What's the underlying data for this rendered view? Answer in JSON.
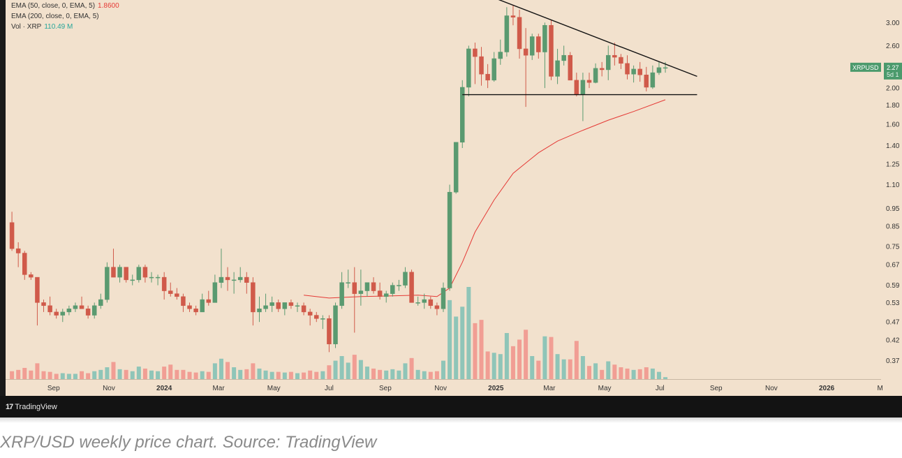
{
  "legend": {
    "ema50": {
      "label": "EMA (50, close, 0, EMA, 5)",
      "value": "1.8600",
      "color": "#e53935"
    },
    "ema200": {
      "label": "EMA (200, close, 0, EMA, 5)"
    },
    "vol": {
      "label": "Vol · XRP",
      "value": "110.49 M",
      "color": "#26a69a"
    }
  },
  "symbol_tag": {
    "name": "XRPUSD",
    "price": "2.27",
    "interval": "5d 1"
  },
  "brand": "TradingView",
  "caption": "XRP/USD weekly price chart. Source: TradingView",
  "colors": {
    "up": "#5a9a70",
    "down": "#d05a4a",
    "vol_up": "#8fc5b8",
    "vol_down": "#f19e94",
    "ema": "#e53935",
    "background": "#f2e1cd"
  },
  "chart_data": {
    "type": "candlestick",
    "interval": "weekly",
    "y_scale": "log",
    "ylim": [
      0.33,
      3.45
    ],
    "xlim": [
      "2023-07-10",
      "2026-03-02"
    ],
    "y_ticks": [
      "3.00",
      "2.60",
      "2.00",
      "1.80",
      "1.60",
      "1.40",
      "1.25",
      "1.10",
      "0.95",
      "0.85",
      "0.75",
      "0.67",
      "0.59",
      "0.53",
      "0.47",
      "0.42",
      "0.37"
    ],
    "x_ticks": [
      {
        "label": "Sep",
        "date": "2023-09-01",
        "bold": false
      },
      {
        "label": "Nov",
        "date": "2023-11-01",
        "bold": false
      },
      {
        "label": "2024",
        "date": "2024-01-01",
        "bold": true
      },
      {
        "label": "Mar",
        "date": "2024-03-01",
        "bold": false
      },
      {
        "label": "May",
        "date": "2024-05-01",
        "bold": false
      },
      {
        "label": "Jul",
        "date": "2024-07-01",
        "bold": false
      },
      {
        "label": "Sep",
        "date": "2024-09-01",
        "bold": false
      },
      {
        "label": "Nov",
        "date": "2024-11-01",
        "bold": false
      },
      {
        "label": "2025",
        "date": "2025-01-01",
        "bold": true
      },
      {
        "label": "Mar",
        "date": "2025-03-01",
        "bold": false
      },
      {
        "label": "May",
        "date": "2025-05-01",
        "bold": false
      },
      {
        "label": "Jul",
        "date": "2025-07-01",
        "bold": false
      },
      {
        "label": "Sep",
        "date": "2025-09-01",
        "bold": false
      },
      {
        "label": "Nov",
        "date": "2025-11-01",
        "bold": false
      },
      {
        "label": "2026",
        "date": "2026-01-01",
        "bold": true
      },
      {
        "label": "M",
        "date": "2026-03-01",
        "bold": false
      }
    ],
    "candles": [
      {
        "date": "2023-07-17",
        "o": 0.87,
        "h": 0.93,
        "l": 0.73,
        "c": 0.74,
        "v": 12
      },
      {
        "date": "2023-07-24",
        "o": 0.74,
        "h": 0.77,
        "l": 0.66,
        "c": 0.72,
        "v": 14
      },
      {
        "date": "2023-07-31",
        "o": 0.72,
        "h": 0.73,
        "l": 0.61,
        "c": 0.63,
        "v": 17
      },
      {
        "date": "2023-08-07",
        "o": 0.63,
        "h": 0.64,
        "l": 0.61,
        "c": 0.62,
        "v": 13
      },
      {
        "date": "2023-08-14",
        "o": 0.62,
        "h": 0.62,
        "l": 0.46,
        "c": 0.53,
        "v": 24
      },
      {
        "date": "2023-08-21",
        "o": 0.53,
        "h": 0.54,
        "l": 0.5,
        "c": 0.52,
        "v": 12
      },
      {
        "date": "2023-08-28",
        "o": 0.52,
        "h": 0.55,
        "l": 0.49,
        "c": 0.5,
        "v": 11
      },
      {
        "date": "2023-09-04",
        "o": 0.5,
        "h": 0.51,
        "l": 0.48,
        "c": 0.49,
        "v": 8
      },
      {
        "date": "2023-09-11",
        "o": 0.49,
        "h": 0.51,
        "l": 0.47,
        "c": 0.5,
        "v": 9
      },
      {
        "date": "2023-09-18",
        "o": 0.5,
        "h": 0.52,
        "l": 0.49,
        "c": 0.51,
        "v": 8
      },
      {
        "date": "2023-09-25",
        "o": 0.51,
        "h": 0.53,
        "l": 0.5,
        "c": 0.52,
        "v": 8
      },
      {
        "date": "2023-10-02",
        "o": 0.52,
        "h": 0.55,
        "l": 0.51,
        "c": 0.51,
        "v": 12
      },
      {
        "date": "2023-10-09",
        "o": 0.51,
        "h": 0.52,
        "l": 0.48,
        "c": 0.49,
        "v": 9
      },
      {
        "date": "2023-10-16",
        "o": 0.49,
        "h": 0.53,
        "l": 0.48,
        "c": 0.52,
        "v": 12
      },
      {
        "date": "2023-10-23",
        "o": 0.52,
        "h": 0.56,
        "l": 0.51,
        "c": 0.54,
        "v": 14
      },
      {
        "date": "2023-10-30",
        "o": 0.54,
        "h": 0.68,
        "l": 0.53,
        "c": 0.66,
        "v": 18
      },
      {
        "date": "2023-11-06",
        "o": 0.66,
        "h": 0.74,
        "l": 0.62,
        "c": 0.62,
        "v": 26
      },
      {
        "date": "2023-11-13",
        "o": 0.62,
        "h": 0.67,
        "l": 0.6,
        "c": 0.66,
        "v": 15
      },
      {
        "date": "2023-11-20",
        "o": 0.66,
        "h": 0.66,
        "l": 0.6,
        "c": 0.61,
        "v": 14
      },
      {
        "date": "2023-11-27",
        "o": 0.61,
        "h": 0.63,
        "l": 0.59,
        "c": 0.61,
        "v": 12
      },
      {
        "date": "2023-12-04",
        "o": 0.61,
        "h": 0.67,
        "l": 0.6,
        "c": 0.66,
        "v": 19
      },
      {
        "date": "2023-12-11",
        "o": 0.66,
        "h": 0.67,
        "l": 0.6,
        "c": 0.62,
        "v": 16
      },
      {
        "date": "2023-12-18",
        "o": 0.62,
        "h": 0.64,
        "l": 0.6,
        "c": 0.62,
        "v": 13
      },
      {
        "date": "2023-12-25",
        "o": 0.62,
        "h": 0.63,
        "l": 0.59,
        "c": 0.62,
        "v": 12
      },
      {
        "date": "2024-01-01",
        "o": 0.62,
        "h": 0.64,
        "l": 0.54,
        "c": 0.57,
        "v": 19
      },
      {
        "date": "2024-01-08",
        "o": 0.57,
        "h": 0.6,
        "l": 0.55,
        "c": 0.56,
        "v": 22
      },
      {
        "date": "2024-01-15",
        "o": 0.56,
        "h": 0.58,
        "l": 0.54,
        "c": 0.55,
        "v": 14
      },
      {
        "date": "2024-01-22",
        "o": 0.55,
        "h": 0.56,
        "l": 0.5,
        "c": 0.52,
        "v": 14
      },
      {
        "date": "2024-01-29",
        "o": 0.52,
        "h": 0.53,
        "l": 0.5,
        "c": 0.51,
        "v": 11
      },
      {
        "date": "2024-02-05",
        "o": 0.51,
        "h": 0.52,
        "l": 0.49,
        "c": 0.5,
        "v": 10
      },
      {
        "date": "2024-02-12",
        "o": 0.5,
        "h": 0.56,
        "l": 0.5,
        "c": 0.54,
        "v": 12
      },
      {
        "date": "2024-02-19",
        "o": 0.54,
        "h": 0.57,
        "l": 0.52,
        "c": 0.53,
        "v": 11
      },
      {
        "date": "2024-02-26",
        "o": 0.53,
        "h": 0.63,
        "l": 0.53,
        "c": 0.6,
        "v": 24
      },
      {
        "date": "2024-03-04",
        "o": 0.6,
        "h": 0.74,
        "l": 0.58,
        "c": 0.62,
        "v": 31
      },
      {
        "date": "2024-03-11",
        "o": 0.62,
        "h": 0.66,
        "l": 0.57,
        "c": 0.61,
        "v": 26
      },
      {
        "date": "2024-03-18",
        "o": 0.61,
        "h": 0.64,
        "l": 0.56,
        "c": 0.61,
        "v": 18
      },
      {
        "date": "2024-03-25",
        "o": 0.61,
        "h": 0.66,
        "l": 0.6,
        "c": 0.62,
        "v": 14
      },
      {
        "date": "2024-04-01",
        "o": 0.62,
        "h": 0.64,
        "l": 0.56,
        "c": 0.6,
        "v": 15
      },
      {
        "date": "2024-04-08",
        "o": 0.6,
        "h": 0.62,
        "l": 0.46,
        "c": 0.5,
        "v": 24
      },
      {
        "date": "2024-04-15",
        "o": 0.5,
        "h": 0.55,
        "l": 0.47,
        "c": 0.51,
        "v": 16
      },
      {
        "date": "2024-04-22",
        "o": 0.51,
        "h": 0.56,
        "l": 0.5,
        "c": 0.52,
        "v": 13
      },
      {
        "date": "2024-04-29",
        "o": 0.52,
        "h": 0.55,
        "l": 0.5,
        "c": 0.53,
        "v": 11
      },
      {
        "date": "2024-05-06",
        "o": 0.53,
        "h": 0.54,
        "l": 0.5,
        "c": 0.51,
        "v": 11
      },
      {
        "date": "2024-05-13",
        "o": 0.51,
        "h": 0.53,
        "l": 0.49,
        "c": 0.53,
        "v": 10
      },
      {
        "date": "2024-05-20",
        "o": 0.53,
        "h": 0.54,
        "l": 0.51,
        "c": 0.52,
        "v": 11
      },
      {
        "date": "2024-05-27",
        "o": 0.52,
        "h": 0.53,
        "l": 0.5,
        "c": 0.52,
        "v": 9
      },
      {
        "date": "2024-06-03",
        "o": 0.52,
        "h": 0.53,
        "l": 0.49,
        "c": 0.5,
        "v": 10
      },
      {
        "date": "2024-06-10",
        "o": 0.5,
        "h": 0.51,
        "l": 0.46,
        "c": 0.49,
        "v": 13
      },
      {
        "date": "2024-06-17",
        "o": 0.49,
        "h": 0.5,
        "l": 0.47,
        "c": 0.48,
        "v": 11
      },
      {
        "date": "2024-06-24",
        "o": 0.48,
        "h": 0.49,
        "l": 0.45,
        "c": 0.48,
        "v": 12
      },
      {
        "date": "2024-07-01",
        "o": 0.48,
        "h": 0.49,
        "l": 0.39,
        "c": 0.41,
        "v": 21
      },
      {
        "date": "2024-07-08",
        "o": 0.41,
        "h": 0.53,
        "l": 0.4,
        "c": 0.52,
        "v": 28
      },
      {
        "date": "2024-07-15",
        "o": 0.52,
        "h": 0.64,
        "l": 0.51,
        "c": 0.6,
        "v": 35
      },
      {
        "date": "2024-07-22",
        "o": 0.6,
        "h": 0.65,
        "l": 0.58,
        "c": 0.6,
        "v": 25
      },
      {
        "date": "2024-07-29",
        "o": 0.6,
        "h": 0.66,
        "l": 0.44,
        "c": 0.56,
        "v": 37
      },
      {
        "date": "2024-08-05",
        "o": 0.56,
        "h": 0.65,
        "l": 0.52,
        "c": 0.57,
        "v": 29
      },
      {
        "date": "2024-08-12",
        "o": 0.57,
        "h": 0.6,
        "l": 0.55,
        "c": 0.6,
        "v": 19
      },
      {
        "date": "2024-08-19",
        "o": 0.6,
        "h": 0.62,
        "l": 0.56,
        "c": 0.57,
        "v": 16
      },
      {
        "date": "2024-08-26",
        "o": 0.57,
        "h": 0.6,
        "l": 0.54,
        "c": 0.55,
        "v": 14
      },
      {
        "date": "2024-09-02",
        "o": 0.55,
        "h": 0.57,
        "l": 0.53,
        "c": 0.56,
        "v": 13
      },
      {
        "date": "2024-09-09",
        "o": 0.56,
        "h": 0.6,
        "l": 0.55,
        "c": 0.59,
        "v": 15
      },
      {
        "date": "2024-09-16",
        "o": 0.59,
        "h": 0.61,
        "l": 0.57,
        "c": 0.59,
        "v": 13
      },
      {
        "date": "2024-09-23",
        "o": 0.59,
        "h": 0.66,
        "l": 0.58,
        "c": 0.64,
        "v": 24
      },
      {
        "date": "2024-09-30",
        "o": 0.64,
        "h": 0.65,
        "l": 0.53,
        "c": 0.53,
        "v": 32
      },
      {
        "date": "2024-10-07",
        "o": 0.53,
        "h": 0.55,
        "l": 0.52,
        "c": 0.53,
        "v": 14
      },
      {
        "date": "2024-10-14",
        "o": 0.53,
        "h": 0.56,
        "l": 0.51,
        "c": 0.54,
        "v": 12
      },
      {
        "date": "2024-10-21",
        "o": 0.54,
        "h": 0.55,
        "l": 0.51,
        "c": 0.52,
        "v": 11
      },
      {
        "date": "2024-10-28",
        "o": 0.52,
        "h": 0.53,
        "l": 0.49,
        "c": 0.51,
        "v": 12
      },
      {
        "date": "2024-11-04",
        "o": 0.51,
        "h": 0.6,
        "l": 0.5,
        "c": 0.58,
        "v": 28
      },
      {
        "date": "2024-11-11",
        "o": 0.58,
        "h": 1.1,
        "l": 0.57,
        "c": 1.05,
        "v": 120
      },
      {
        "date": "2024-11-18",
        "o": 1.05,
        "h": 1.43,
        "l": 1.04,
        "c": 1.43,
        "v": 95
      },
      {
        "date": "2024-11-25",
        "o": 1.43,
        "h": 2.1,
        "l": 1.38,
        "c": 2.01,
        "v": 110
      },
      {
        "date": "2024-12-02",
        "o": 2.01,
        "h": 2.6,
        "l": 1.9,
        "c": 2.55,
        "v": 140
      },
      {
        "date": "2024-12-09",
        "o": 2.55,
        "h": 2.65,
        "l": 2.05,
        "c": 2.43,
        "v": 85
      },
      {
        "date": "2024-12-16",
        "o": 2.43,
        "h": 2.58,
        "l": 2.03,
        "c": 2.18,
        "v": 90
      },
      {
        "date": "2024-12-23",
        "o": 2.18,
        "h": 2.32,
        "l": 2.0,
        "c": 2.1,
        "v": 42
      },
      {
        "date": "2024-12-30",
        "o": 2.1,
        "h": 2.5,
        "l": 2.08,
        "c": 2.4,
        "v": 40
      },
      {
        "date": "2025-01-06",
        "o": 2.4,
        "h": 2.7,
        "l": 2.31,
        "c": 2.5,
        "v": 38
      },
      {
        "date": "2025-01-13",
        "o": 2.5,
        "h": 3.3,
        "l": 2.43,
        "c": 3.13,
        "v": 70
      },
      {
        "date": "2025-01-20",
        "o": 3.13,
        "h": 3.35,
        "l": 2.95,
        "c": 3.1,
        "v": 50
      },
      {
        "date": "2025-01-27",
        "o": 3.1,
        "h": 3.25,
        "l": 2.4,
        "c": 2.55,
        "v": 60
      },
      {
        "date": "2025-02-03",
        "o": 2.55,
        "h": 2.9,
        "l": 1.78,
        "c": 2.45,
        "v": 75
      },
      {
        "date": "2025-02-10",
        "o": 2.45,
        "h": 2.8,
        "l": 2.38,
        "c": 2.75,
        "v": 35
      },
      {
        "date": "2025-02-17",
        "o": 2.75,
        "h": 2.8,
        "l": 2.4,
        "c": 2.5,
        "v": 28
      },
      {
        "date": "2025-02-24",
        "o": 2.5,
        "h": 3.0,
        "l": 2.0,
        "c": 2.95,
        "v": 65
      },
      {
        "date": "2025-03-03",
        "o": 2.95,
        "h": 3.05,
        "l": 2.1,
        "c": 2.15,
        "v": 64
      },
      {
        "date": "2025-03-10",
        "o": 2.15,
        "h": 2.55,
        "l": 2.05,
        "c": 2.37,
        "v": 38
      },
      {
        "date": "2025-03-17",
        "o": 2.37,
        "h": 2.6,
        "l": 2.3,
        "c": 2.45,
        "v": 30
      },
      {
        "date": "2025-03-24",
        "o": 2.45,
        "h": 2.5,
        "l": 2.1,
        "c": 2.1,
        "v": 30
      },
      {
        "date": "2025-03-31",
        "o": 2.1,
        "h": 2.2,
        "l": 1.9,
        "c": 1.92,
        "v": 58
      },
      {
        "date": "2025-04-07",
        "o": 1.92,
        "h": 2.2,
        "l": 1.63,
        "c": 2.1,
        "v": 35
      },
      {
        "date": "2025-04-14",
        "o": 2.1,
        "h": 2.2,
        "l": 2.0,
        "c": 2.07,
        "v": 20
      },
      {
        "date": "2025-04-21",
        "o": 2.07,
        "h": 2.33,
        "l": 2.06,
        "c": 2.26,
        "v": 24
      },
      {
        "date": "2025-04-28",
        "o": 2.26,
        "h": 2.35,
        "l": 2.15,
        "c": 2.24,
        "v": 14
      },
      {
        "date": "2025-05-05",
        "o": 2.24,
        "h": 2.6,
        "l": 2.1,
        "c": 2.45,
        "v": 27
      },
      {
        "date": "2025-05-12",
        "o": 2.45,
        "h": 2.65,
        "l": 2.3,
        "c": 2.42,
        "v": 22
      },
      {
        "date": "2025-05-19",
        "o": 2.42,
        "h": 2.47,
        "l": 2.25,
        "c": 2.33,
        "v": 18
      },
      {
        "date": "2025-05-26",
        "o": 2.33,
        "h": 2.45,
        "l": 2.11,
        "c": 2.18,
        "v": 16
      },
      {
        "date": "2025-06-02",
        "o": 2.18,
        "h": 2.3,
        "l": 2.07,
        "c": 2.25,
        "v": 14
      },
      {
        "date": "2025-06-09",
        "o": 2.25,
        "h": 2.35,
        "l": 2.08,
        "c": 2.17,
        "v": 15
      },
      {
        "date": "2025-06-16",
        "o": 2.17,
        "h": 2.28,
        "l": 1.96,
        "c": 2.01,
        "v": 18
      },
      {
        "date": "2025-06-23",
        "o": 2.01,
        "h": 2.3,
        "l": 1.99,
        "c": 2.2,
        "v": 16
      },
      {
        "date": "2025-06-30",
        "o": 2.2,
        "h": 2.35,
        "l": 2.17,
        "c": 2.27,
        "v": 11
      },
      {
        "date": "2025-07-07",
        "o": 2.27,
        "h": 2.35,
        "l": 2.2,
        "c": 2.27,
        "v": 3
      }
    ],
    "ema": [
      {
        "date": "2024-06-03",
        "v": 0.555
      },
      {
        "date": "2024-07-01",
        "v": 0.545
      },
      {
        "date": "2024-08-05",
        "v": 0.55
      },
      {
        "date": "2024-09-02",
        "v": 0.552
      },
      {
        "date": "2024-10-07",
        "v": 0.555
      },
      {
        "date": "2024-10-28",
        "v": 0.55
      },
      {
        "date": "2024-11-11",
        "v": 0.58
      },
      {
        "date": "2024-11-25",
        "v": 0.68
      },
      {
        "date": "2024-12-09",
        "v": 0.82
      },
      {
        "date": "2024-12-30",
        "v": 1.0
      },
      {
        "date": "2025-01-20",
        "v": 1.18
      },
      {
        "date": "2025-02-17",
        "v": 1.34
      },
      {
        "date": "2025-03-10",
        "v": 1.44
      },
      {
        "date": "2025-04-07",
        "v": 1.54
      },
      {
        "date": "2025-05-05",
        "v": 1.64
      },
      {
        "date": "2025-06-02",
        "v": 1.73
      },
      {
        "date": "2025-07-07",
        "v": 1.86
      }
    ],
    "trendlines": [
      {
        "name": "descending resistance",
        "from": {
          "date": "2024-12-23",
          "v": 3.55
        },
        "to": {
          "date": "2025-08-11",
          "v": 2.15
        }
      },
      {
        "name": "horizontal support",
        "from": {
          "date": "2024-11-25",
          "v": 1.92
        },
        "to": {
          "date": "2025-08-11",
          "v": 1.92
        }
      }
    ]
  }
}
